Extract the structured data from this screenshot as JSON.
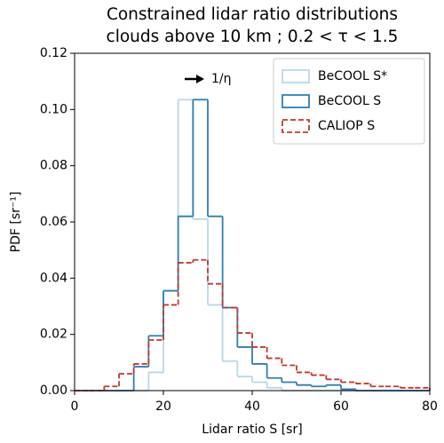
{
  "chart_data": {
    "type": "histogram",
    "title": [
      "Constrained lidar ratio distributions",
      "clouds above 10 km ; 0.2 < τ < 1.5"
    ],
    "xlabel": "Lidar ratio S [sr]",
    "ylabel": "PDF [sr⁻¹]",
    "annotation": "1/η",
    "bins": [
      0,
      3.33,
      6.67,
      10,
      13.33,
      16.67,
      20,
      23.33,
      26.67,
      30,
      33.33,
      36.67,
      40,
      43.33,
      46.67,
      50,
      53.33,
      56.67,
      60,
      63.33,
      66.67,
      70,
      73.33,
      76.67,
      80
    ],
    "series": [
      {
        "name": "BeCOOL S*",
        "color": "#b9d7ea",
        "linestyle": "solid",
        "values": [
          0,
          0,
          0,
          0,
          0,
          0.0065,
          0.0355,
          0.1035,
          0.061,
          0.0305,
          0.0105,
          0.005,
          0.003,
          0.001,
          0,
          0,
          0,
          0,
          0,
          0,
          0,
          0,
          0,
          0
        ]
      },
      {
        "name": "BeCOOL S",
        "color": "#2f7db5",
        "linestyle": "solid",
        "values": [
          0,
          0,
          0,
          0,
          0.0085,
          0.0195,
          0.0355,
          0.062,
          0.1035,
          0.062,
          0.0295,
          0.0155,
          0.0095,
          0.0045,
          0.003,
          0.002,
          0.0015,
          0.002,
          0.0005,
          0,
          0,
          0,
          0,
          0
        ]
      },
      {
        "name": "CALIOP S",
        "color": "#c0392b",
        "linestyle": "dashed",
        "values": [
          0,
          0,
          0.0015,
          0.006,
          0.0095,
          0.018,
          0.0305,
          0.0455,
          0.0465,
          0.038,
          0.0295,
          0.0205,
          0.0155,
          0.0115,
          0.009,
          0.0065,
          0.0055,
          0.004,
          0.003,
          0.0025,
          0.0015,
          0.0015,
          0.001,
          0.001
        ]
      }
    ],
    "xlim": [
      0,
      80
    ],
    "ylim": [
      0,
      0.12
    ],
    "xticks": [
      0,
      20,
      40,
      60,
      80
    ],
    "yticks": [
      {
        "value": 0,
        "label": "0.00"
      },
      {
        "value": 0.02,
        "label": "0.02"
      },
      {
        "value": 0.04,
        "label": "0.04"
      },
      {
        "value": 0.06,
        "label": "0.06"
      },
      {
        "value": 0.08,
        "label": "0.08"
      },
      {
        "value": 0.1,
        "label": "0.10"
      },
      {
        "value": 0.12,
        "label": "0.12"
      }
    ],
    "grid": false,
    "legend": "upper right"
  }
}
